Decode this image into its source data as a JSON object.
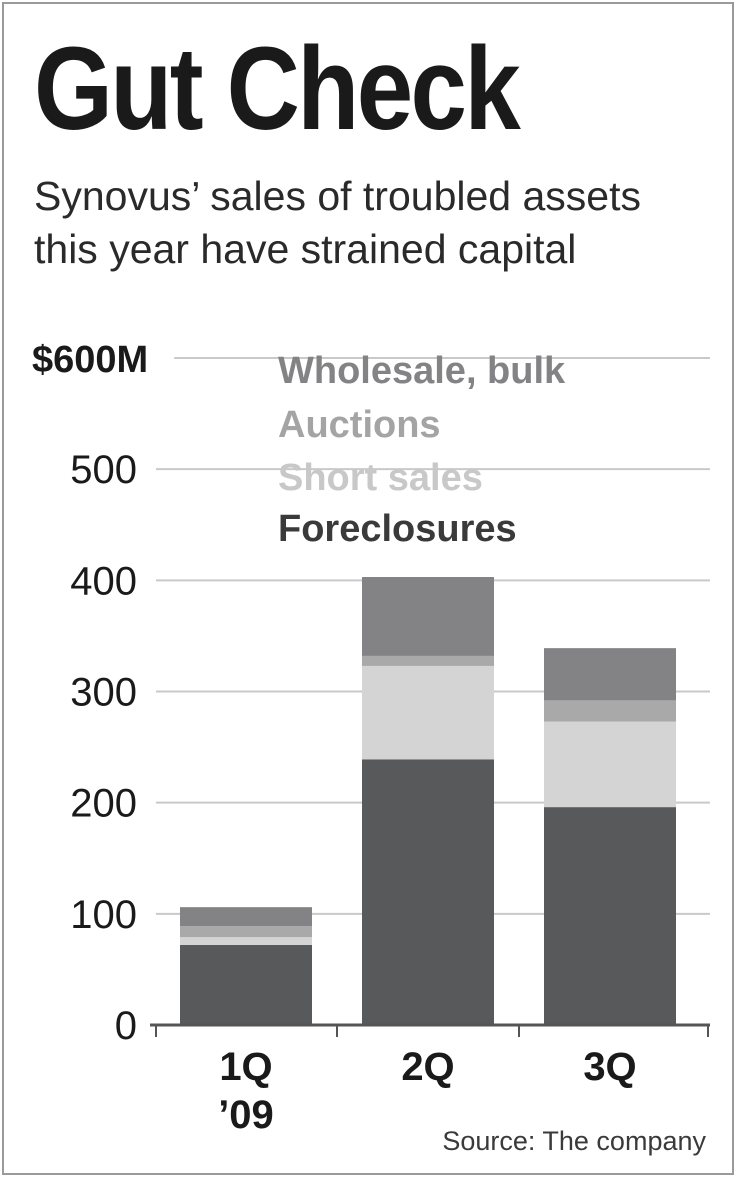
{
  "title": "Gut Check",
  "subtitle": "Synovus’ sales of troubled assets this year have strained capital",
  "source": "Source: The company",
  "chart_data": {
    "type": "bar",
    "stacked": true,
    "categories": [
      "1Q '09",
      "2Q",
      "3Q"
    ],
    "category_lines": [
      [
        "1Q",
        "’09"
      ],
      [
        "2Q"
      ],
      [
        "3Q"
      ]
    ],
    "series": [
      {
        "name": "Foreclosures",
        "color": "#58595b",
        "values": [
          72,
          239,
          196
        ]
      },
      {
        "name": "Short sales",
        "color": "#d4d4d4",
        "values": [
          7,
          84,
          77
        ]
      },
      {
        "name": "Auctions",
        "color": "#a9a9a9",
        "values": [
          10,
          9,
          19
        ]
      },
      {
        "name": "Wholesale, bulk",
        "color": "#838385",
        "values": [
          17,
          71,
          47
        ]
      }
    ],
    "ylim": [
      0,
      600
    ],
    "yticks": [
      0,
      100,
      200,
      300,
      400,
      500,
      600
    ],
    "ytick_labels": [
      "0",
      "100",
      "200",
      "300",
      "400",
      "500",
      "$600M"
    ],
    "grid": true,
    "legend_position": "top, inside plot",
    "legend_order": [
      "Wholesale, bulk",
      "Auctions",
      "Short sales",
      "Foreclosures"
    ],
    "legend_colors": {
      "Wholesale, bulk": "#838385",
      "Auctions": "#a4a4a4",
      "Short sales": "#c8c8c8",
      "Foreclosures": "#3a3a3a"
    },
    "gridline_color": "#c9c9c9",
    "axis_color": "#555555"
  }
}
